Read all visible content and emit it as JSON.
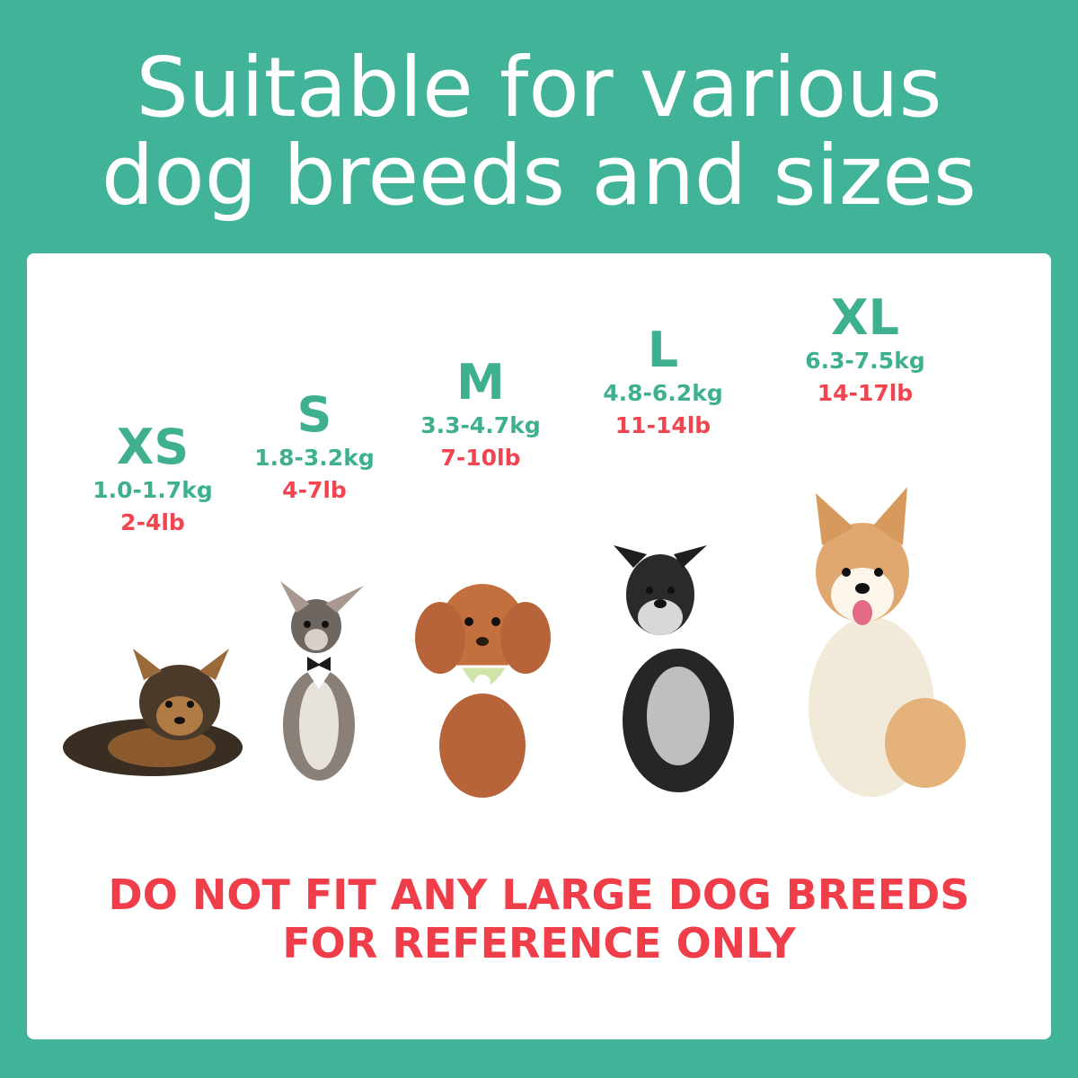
{
  "title": {
    "line1": "Suitable for various",
    "line2": "dog breeds and sizes"
  },
  "sizes": [
    {
      "label": "XS",
      "kg": "1.0-1.7kg",
      "lb": "2-4lb",
      "dog": "yorkshire-terrier"
    },
    {
      "label": "S",
      "kg": "1.8-3.2kg",
      "lb": "4-7lb",
      "dog": "chihuahua"
    },
    {
      "label": "M",
      "kg": "3.3-4.7kg",
      "lb": "7-10lb",
      "dog": "poodle"
    },
    {
      "label": "L",
      "kg": "4.8-6.2kg",
      "lb": "11-14lb",
      "dog": "schnauzer"
    },
    {
      "label": "XL",
      "kg": "6.3-7.5kg",
      "lb": "14-17lb",
      "dog": "shiba-inu"
    }
  ],
  "warning": {
    "line1": "DO NOT FIT ANY LARGE DOG BREEDS",
    "line2": "FOR REFERENCE ONLY"
  },
  "colors": {
    "background": "#41b398",
    "size_text": "#3fb08f",
    "warning_text": "#ef3e4a",
    "card": "#ffffff"
  }
}
